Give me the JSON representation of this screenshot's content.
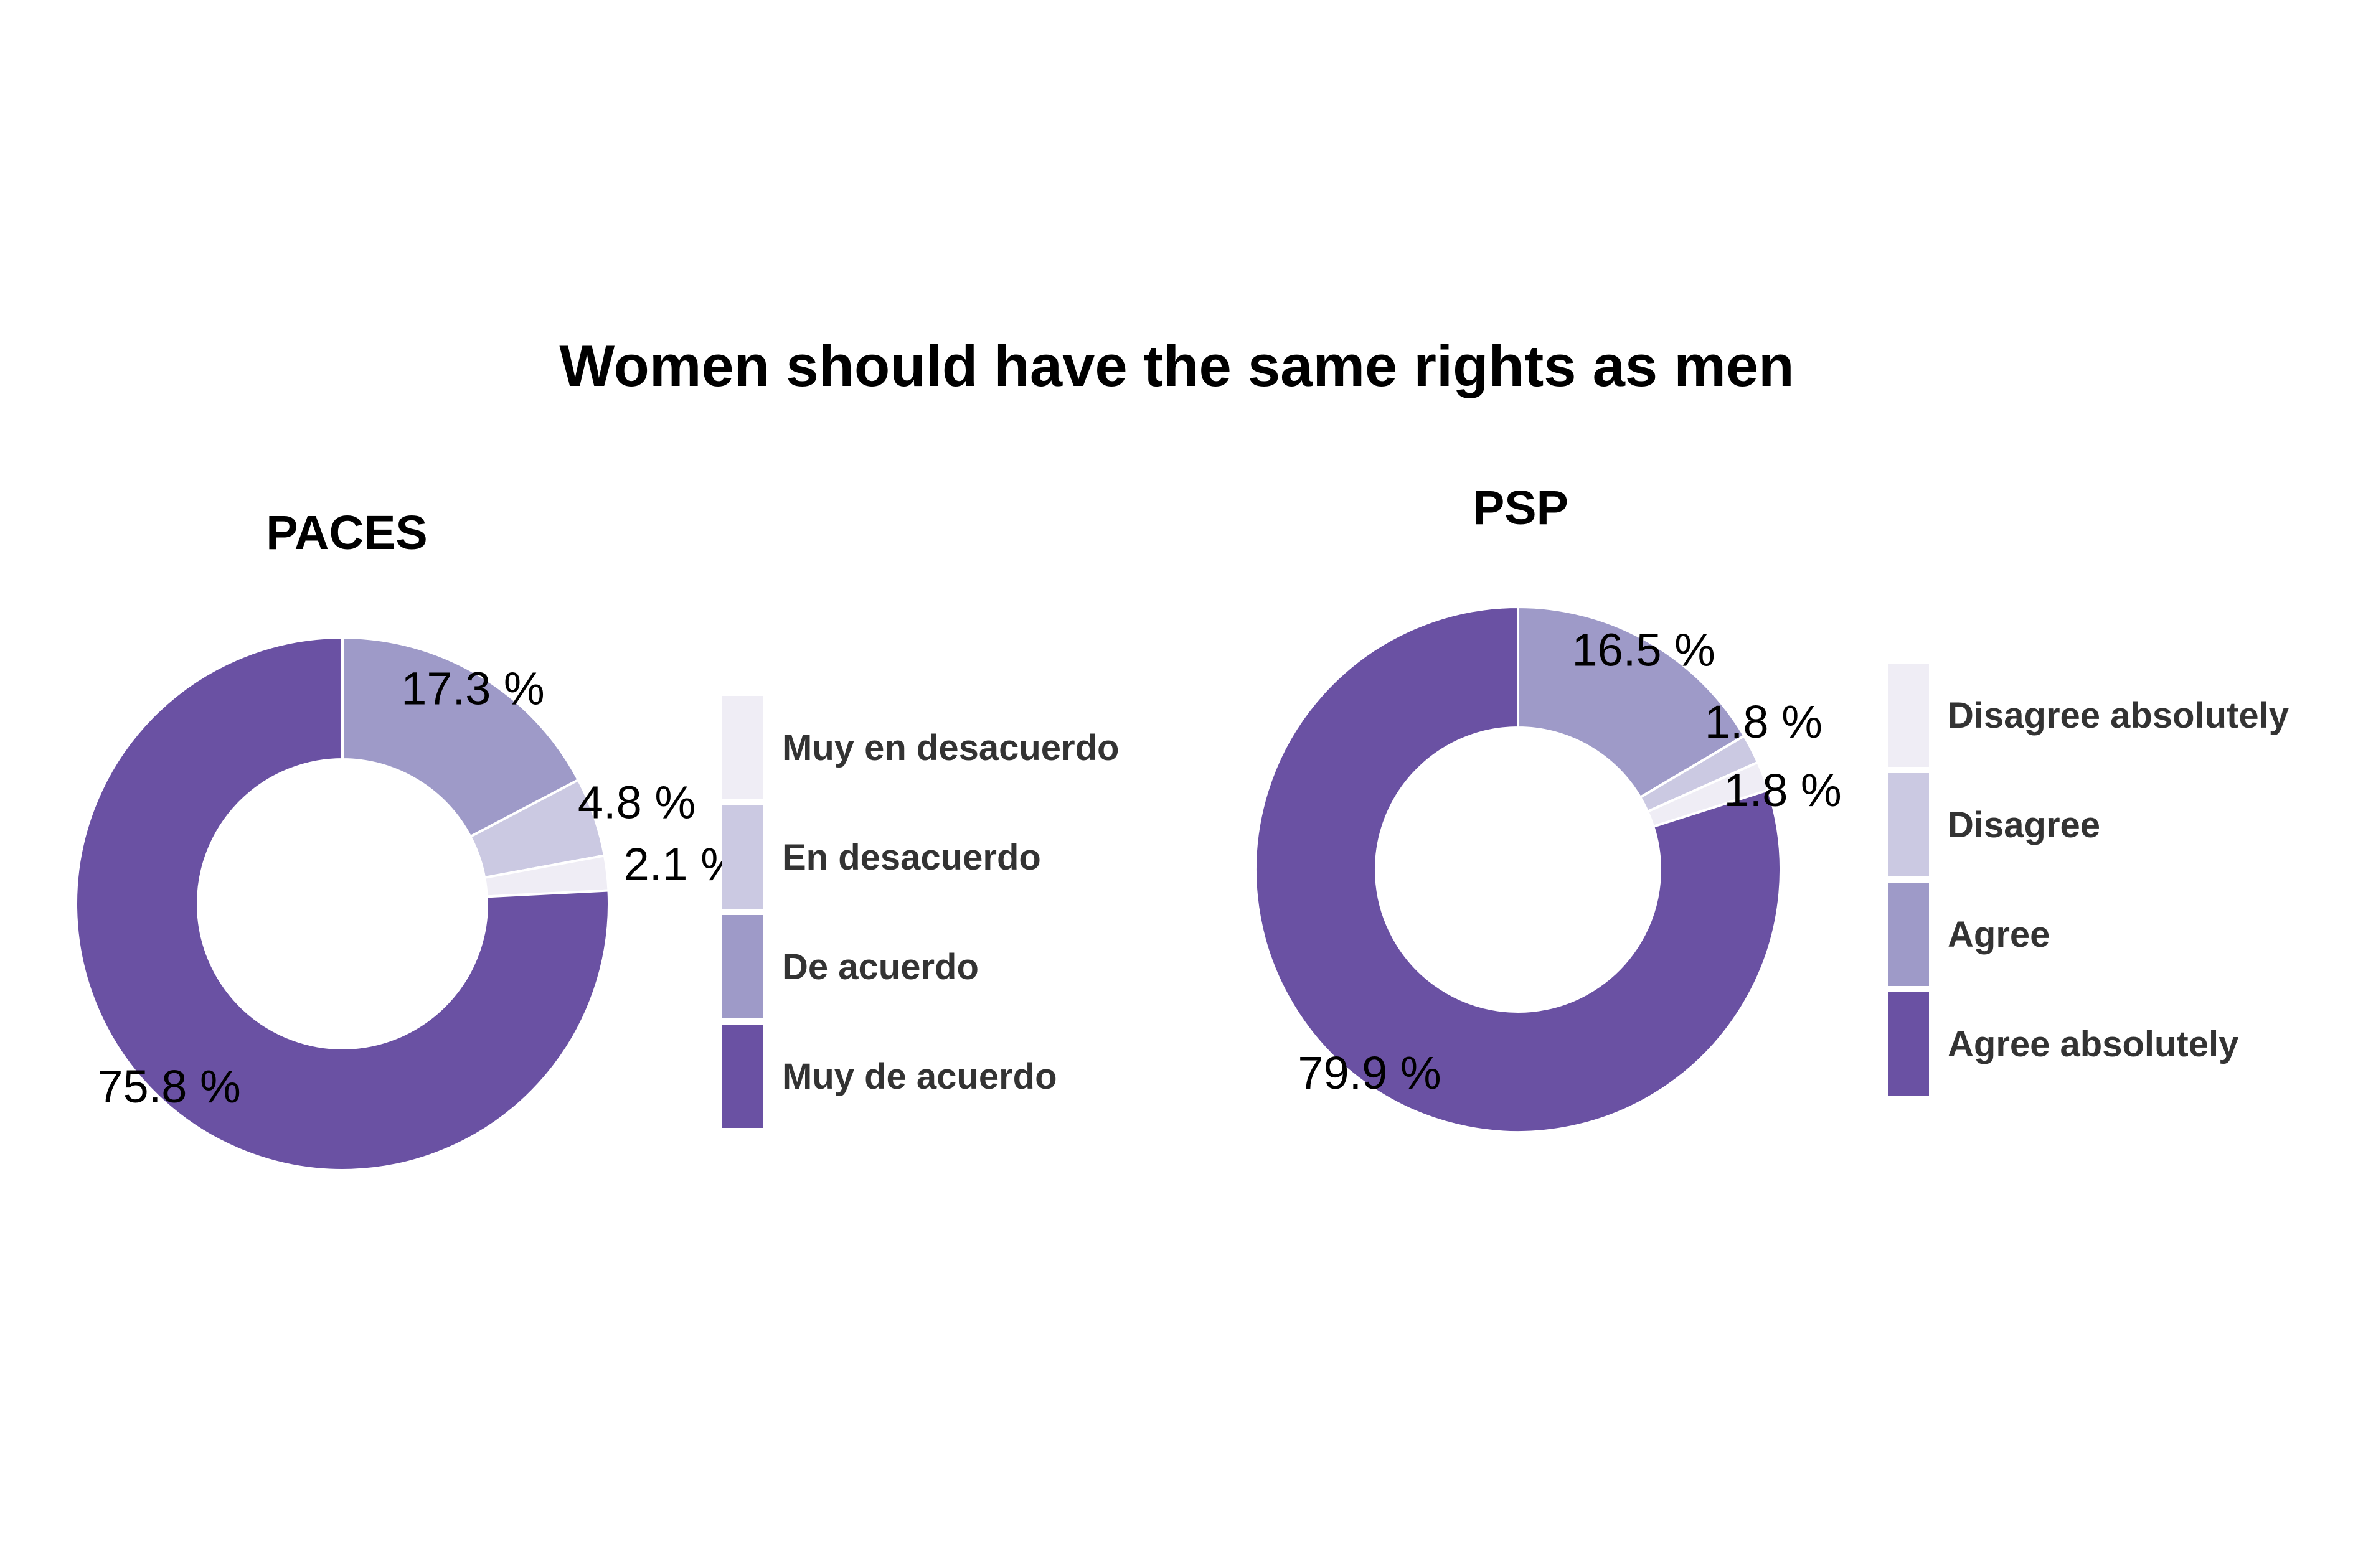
{
  "title": "Women should have the same rights as men",
  "colors": [
    "#efedf5",
    "#cbc9e2",
    "#9e9ac8",
    "#6a51a3"
  ],
  "chart_data": [
    {
      "type": "pie",
      "subtitle": "PACES",
      "categories": [
        "Muy en desacuerdo",
        "En desacuerdo",
        "De acuerdo",
        "Muy de acuerdo"
      ],
      "values": [
        2.1,
        4.8,
        17.3,
        75.8
      ],
      "labels": [
        "2.1 %",
        "4.8 %",
        "17.3 %",
        "75.8 %"
      ],
      "legend_position": "right"
    },
    {
      "type": "pie",
      "subtitle": "PSP",
      "categories": [
        "Disagree absolutely",
        "Disagree",
        "Agree",
        "Agree absolutely"
      ],
      "values": [
        1.8,
        1.8,
        16.5,
        79.9
      ],
      "labels": [
        "1.8 %",
        "1.8 %",
        "16.5 %",
        "79.9 %"
      ],
      "legend_position": "right"
    }
  ]
}
